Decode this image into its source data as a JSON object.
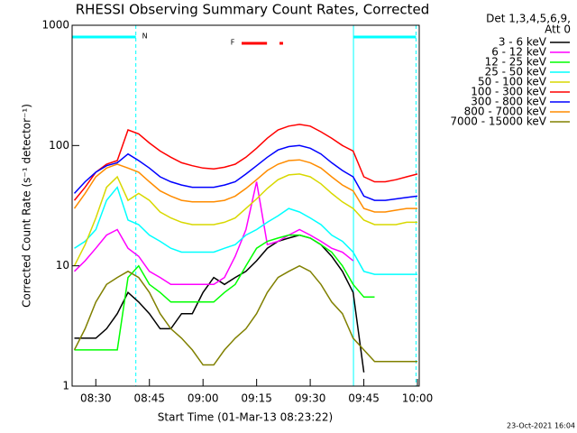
{
  "chart_data": {
    "type": "line",
    "title": "RHESSI Observing Summary Count Rates, Corrected",
    "xlabel": "Start Time (01-Mar-13 08:23:22)",
    "ylabel": "Corrected Count Rate (s⁻¹ detector⁻¹)",
    "legend_header": [
      "Det 1,3,4,5,6,9,",
      "Att 0"
    ],
    "timestamp": "23-Oct-2021 16:04",
    "night_label": "N",
    "night_color": "#00ffff",
    "night_intervals": [
      [
        503.37,
        521.2
      ],
      [
        582.1,
        599.6
      ]
    ],
    "flare_label": "F",
    "flare_color": "#ff0000",
    "flare_intervals": [
      [
        550.8,
        557.9
      ],
      [
        561.4,
        562.4
      ]
    ],
    "log_y": true,
    "xlim": [
      503.37,
      600.5
    ],
    "ylim": [
      1,
      1000
    ],
    "xticks": [
      {
        "value": 510,
        "label": "08:30"
      },
      {
        "value": 525,
        "label": "08:45"
      },
      {
        "value": 540,
        "label": "09:00"
      },
      {
        "value": 555,
        "label": "09:15"
      },
      {
        "value": 570,
        "label": "09:30"
      },
      {
        "value": 585,
        "label": "09:45"
      },
      {
        "value": 600,
        "label": "10:00"
      }
    ],
    "yticks": [
      1,
      10,
      100,
      1000
    ],
    "x": [
      504,
      507,
      510,
      513,
      516,
      519,
      522,
      525,
      528,
      531,
      534,
      537,
      540,
      543,
      546,
      549,
      552,
      555,
      558,
      561,
      564,
      567,
      570,
      573,
      576,
      579,
      582,
      585,
      588,
      591,
      594,
      597,
      600
    ],
    "series": [
      {
        "name": "3 - 6 keV",
        "color": "#000000",
        "values": [
          2.5,
          2.5,
          2.5,
          3,
          4,
          6,
          5,
          4,
          3,
          3,
          4,
          4,
          6,
          8,
          7,
          8,
          9,
          11,
          14,
          16,
          17,
          18,
          17,
          15,
          12,
          9,
          6,
          1.3,
          null,
          null,
          null,
          null,
          null
        ]
      },
      {
        "name": "6 - 12 keV",
        "color": "#ff00ff",
        "values": [
          9,
          11,
          14,
          18,
          20,
          14,
          12,
          9,
          8,
          7,
          7,
          7,
          7,
          7,
          8,
          12,
          20,
          50,
          15,
          16,
          18,
          20,
          18,
          16,
          14,
          13,
          11,
          null,
          null,
          null,
          null,
          null,
          null
        ]
      },
      {
        "name": "12 - 25 keV",
        "color": "#00ff00",
        "values": [
          2,
          2,
          2,
          2,
          2,
          8,
          10,
          7,
          6,
          5,
          5,
          5,
          5,
          5,
          6,
          7,
          10,
          14,
          16,
          17,
          18,
          18,
          17,
          15,
          13,
          10,
          7,
          5.5,
          5.5,
          null,
          null,
          null,
          null
        ]
      },
      {
        "name": "25 - 50 keV",
        "color": "#00ffff",
        "values": [
          14,
          16,
          20,
          35,
          45,
          24,
          22,
          18,
          16,
          14,
          13,
          13,
          13,
          13,
          14,
          15,
          18,
          20,
          23,
          26,
          30,
          28,
          25,
          22,
          18,
          16,
          13,
          9,
          8.5,
          8.5,
          8.5,
          8.5,
          8.5
        ]
      },
      {
        "name": "50 - 100 keV",
        "color": "#d8d800",
        "values": [
          10,
          15,
          25,
          45,
          55,
          35,
          40,
          35,
          28,
          25,
          23,
          22,
          22,
          22,
          23,
          25,
          30,
          36,
          44,
          52,
          57,
          58,
          55,
          48,
          40,
          34,
          30,
          24,
          22,
          22,
          22,
          23,
          23
        ]
      },
      {
        "name": "100 - 300 keV",
        "color": "#ff0000",
        "values": [
          35,
          45,
          60,
          70,
          75,
          135,
          125,
          105,
          90,
          80,
          72,
          68,
          65,
          64,
          66,
          70,
          80,
          95,
          115,
          135,
          145,
          150,
          145,
          130,
          115,
          100,
          90,
          55,
          50,
          50,
          52,
          55,
          58
        ]
      },
      {
        "name": "300 - 800 keV",
        "color": "#0000ff",
        "values": [
          40,
          50,
          60,
          68,
          72,
          85,
          75,
          65,
          55,
          50,
          47,
          45,
          45,
          45,
          47,
          50,
          58,
          68,
          80,
          92,
          98,
          100,
          95,
          85,
          72,
          62,
          55,
          38,
          35,
          35,
          36,
          37,
          38
        ]
      },
      {
        "name": "800 - 7000 keV",
        "color": "#ff8c00",
        "values": [
          30,
          40,
          55,
          65,
          70,
          65,
          60,
          50,
          42,
          38,
          35,
          34,
          34,
          34,
          35,
          38,
          44,
          52,
          62,
          70,
          75,
          76,
          72,
          65,
          55,
          47,
          42,
          30,
          28,
          28,
          29,
          30,
          30
        ]
      },
      {
        "name": "7000 - 15000 keV",
        "color": "#808000",
        "values": [
          2,
          3,
          5,
          7,
          8,
          9,
          8,
          6,
          4,
          3,
          2.5,
          2,
          1.5,
          1.5,
          2,
          2.5,
          3,
          4,
          6,
          8,
          9,
          10,
          9,
          7,
          5,
          4,
          2.5,
          2,
          1.6,
          1.6,
          1.6,
          1.6,
          1.6
        ]
      }
    ]
  }
}
